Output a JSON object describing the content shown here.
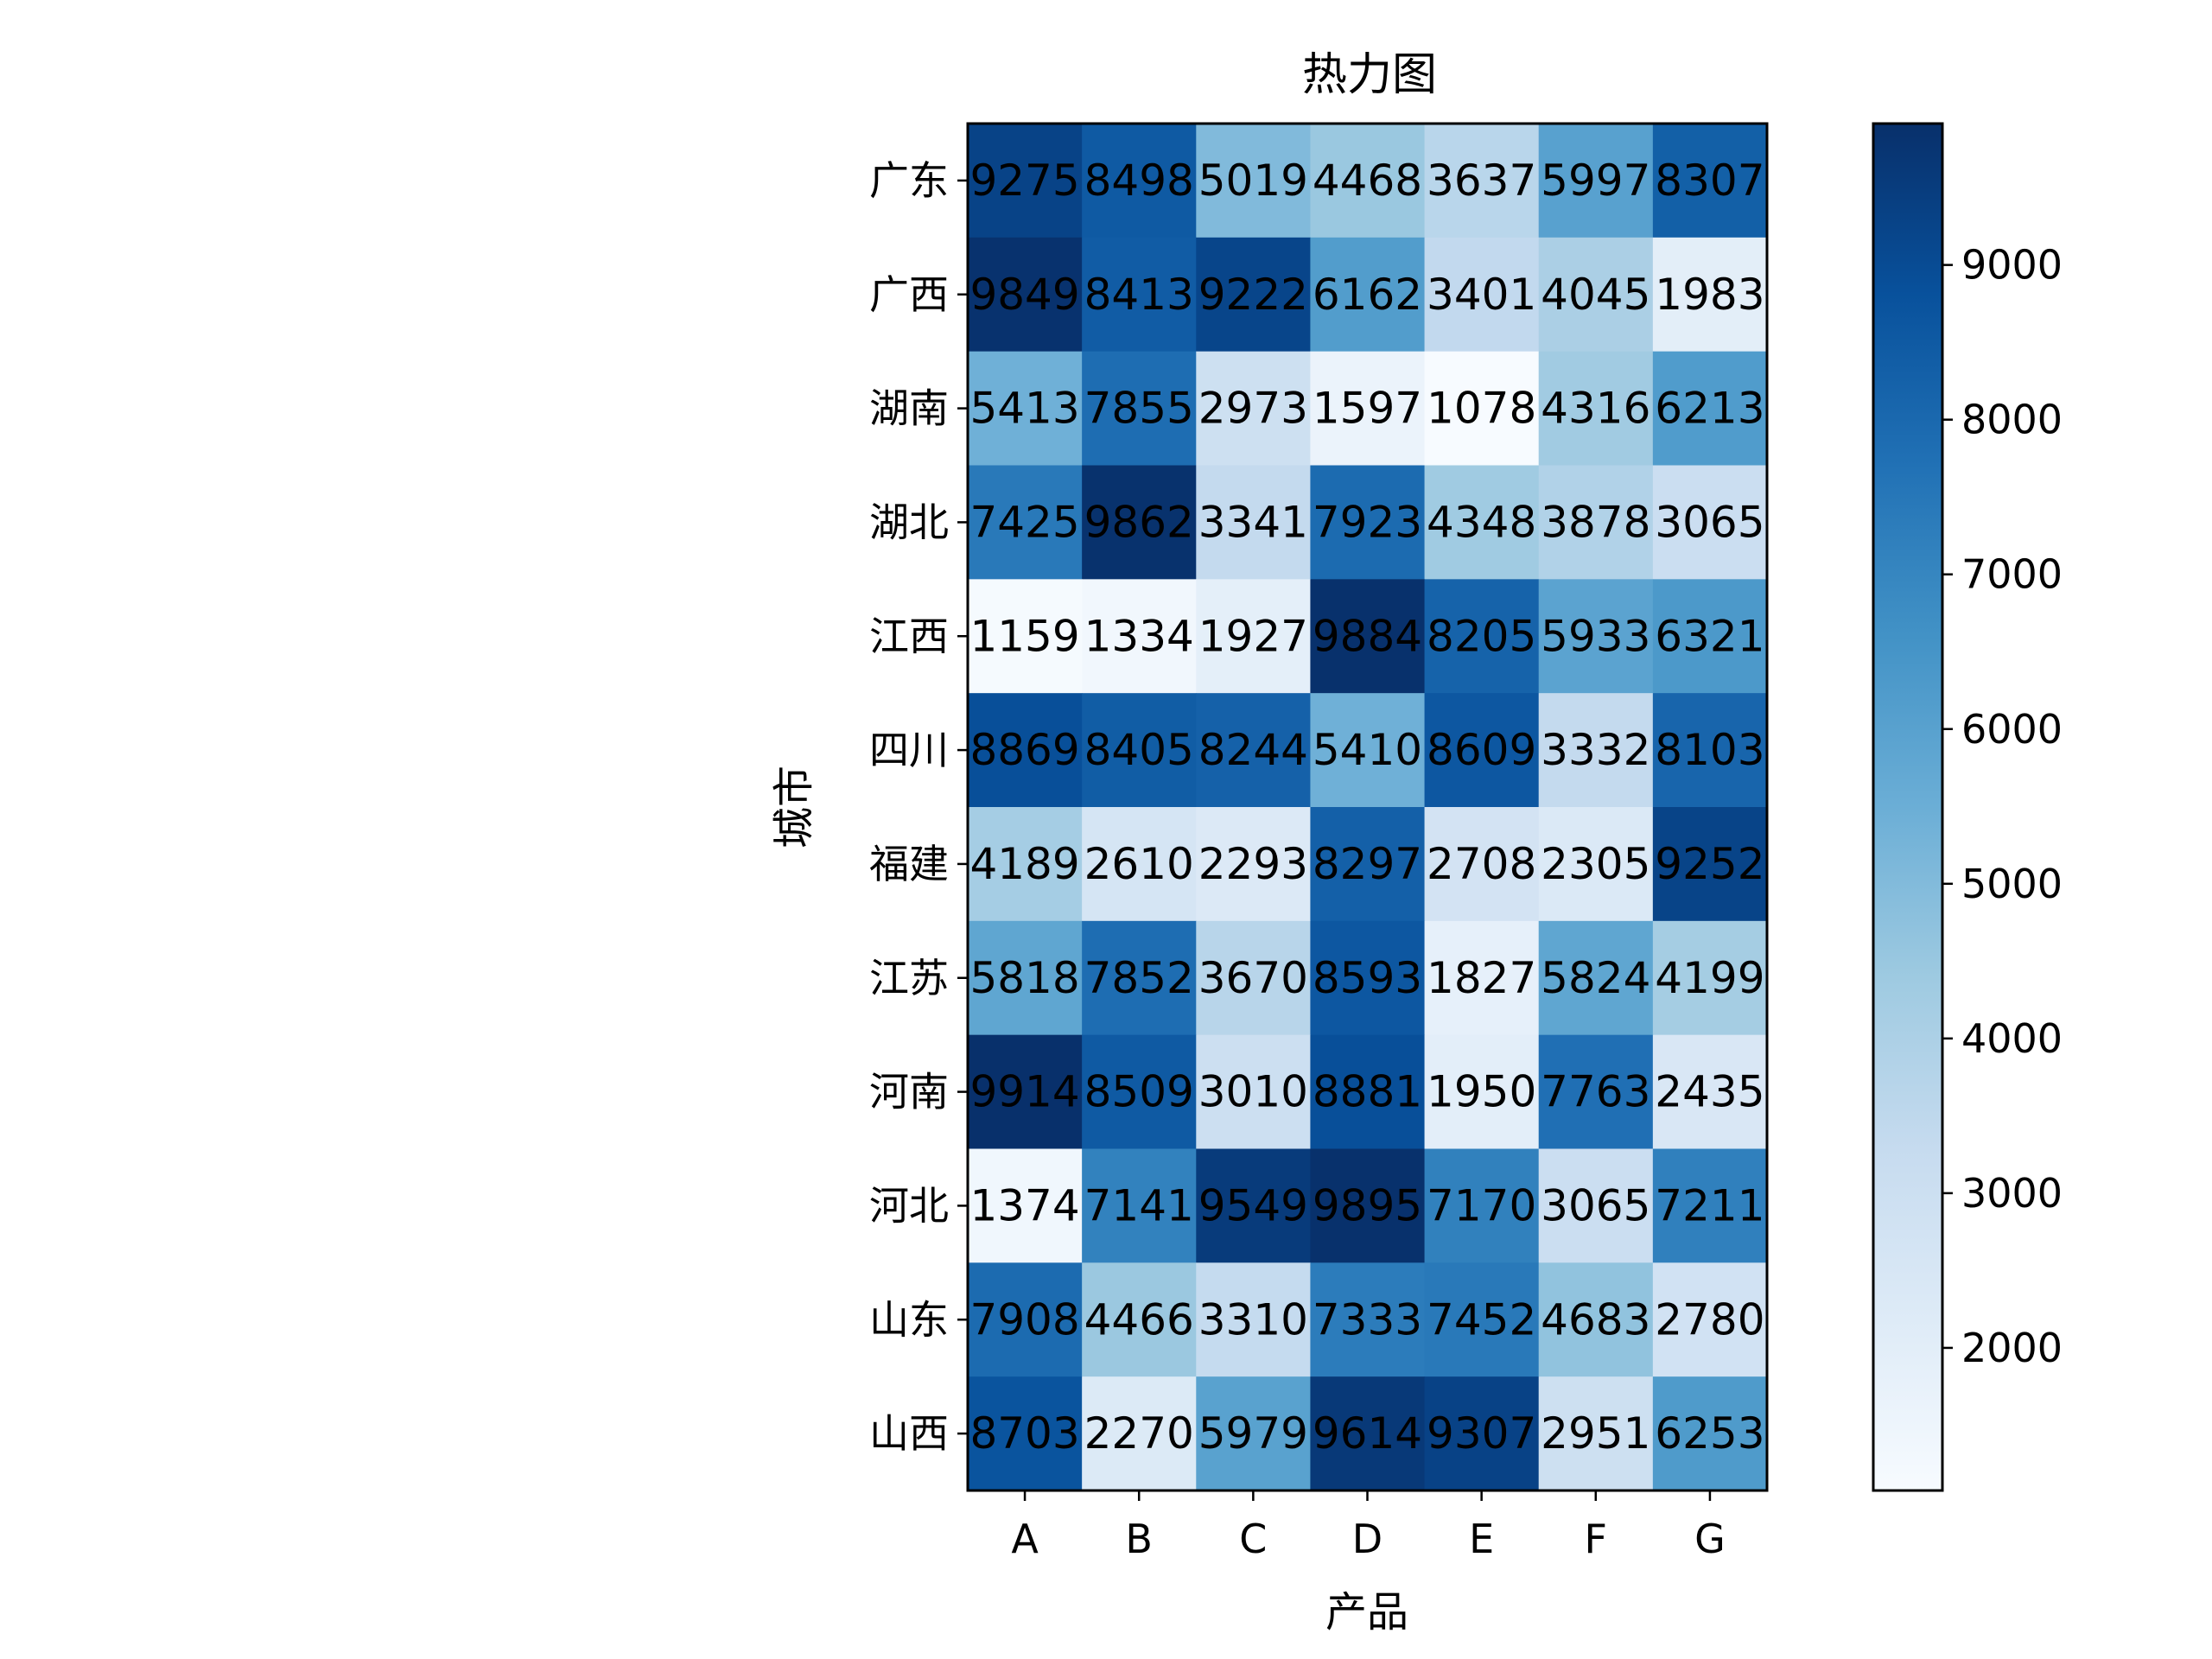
{
  "chart_data": {
    "type": "heatmap",
    "title": "热力图",
    "xlabel": "产品",
    "ylabel": "城市",
    "x_categories": [
      "A",
      "B",
      "C",
      "D",
      "E",
      "F",
      "G"
    ],
    "y_categories": [
      "广东",
      "广西",
      "湖南",
      "湖北",
      "江西",
      "四川",
      "福建",
      "江苏",
      "河南",
      "河北",
      "山东",
      "山西"
    ],
    "values": [
      [
        9275,
        8498,
        5019,
        4468,
        3637,
        5997,
        8307
      ],
      [
        9849,
        8413,
        9222,
        6162,
        3401,
        4045,
        1983
      ],
      [
        5413,
        7855,
        2973,
        1597,
        1078,
        4316,
        6213
      ],
      [
        7425,
        9862,
        3341,
        7923,
        4348,
        3878,
        3065
      ],
      [
        1159,
        1334,
        1927,
        9884,
        8205,
        5933,
        6321
      ],
      [
        8869,
        8405,
        8244,
        5410,
        8609,
        3332,
        8103
      ],
      [
        4189,
        2610,
        2293,
        8297,
        2708,
        2305,
        9252
      ],
      [
        5818,
        7852,
        3670,
        8593,
        1827,
        5824,
        4199
      ],
      [
        9914,
        8509,
        3010,
        8881,
        1950,
        7763,
        2435
      ],
      [
        1374,
        7141,
        9549,
        9895,
        7170,
        3065,
        7211
      ],
      [
        7908,
        4466,
        3310,
        7333,
        7452,
        4683,
        2780
      ],
      [
        8703,
        2270,
        5979,
        9614,
        9307,
        2951,
        6253
      ]
    ],
    "colormap": "Blues",
    "color_range": [
      1078,
      9914
    ],
    "colorbar_ticks": [
      "2000",
      "3000",
      "4000",
      "5000",
      "6000",
      "7000",
      "8000",
      "9000"
    ],
    "cell_labels": true,
    "grid": false
  }
}
